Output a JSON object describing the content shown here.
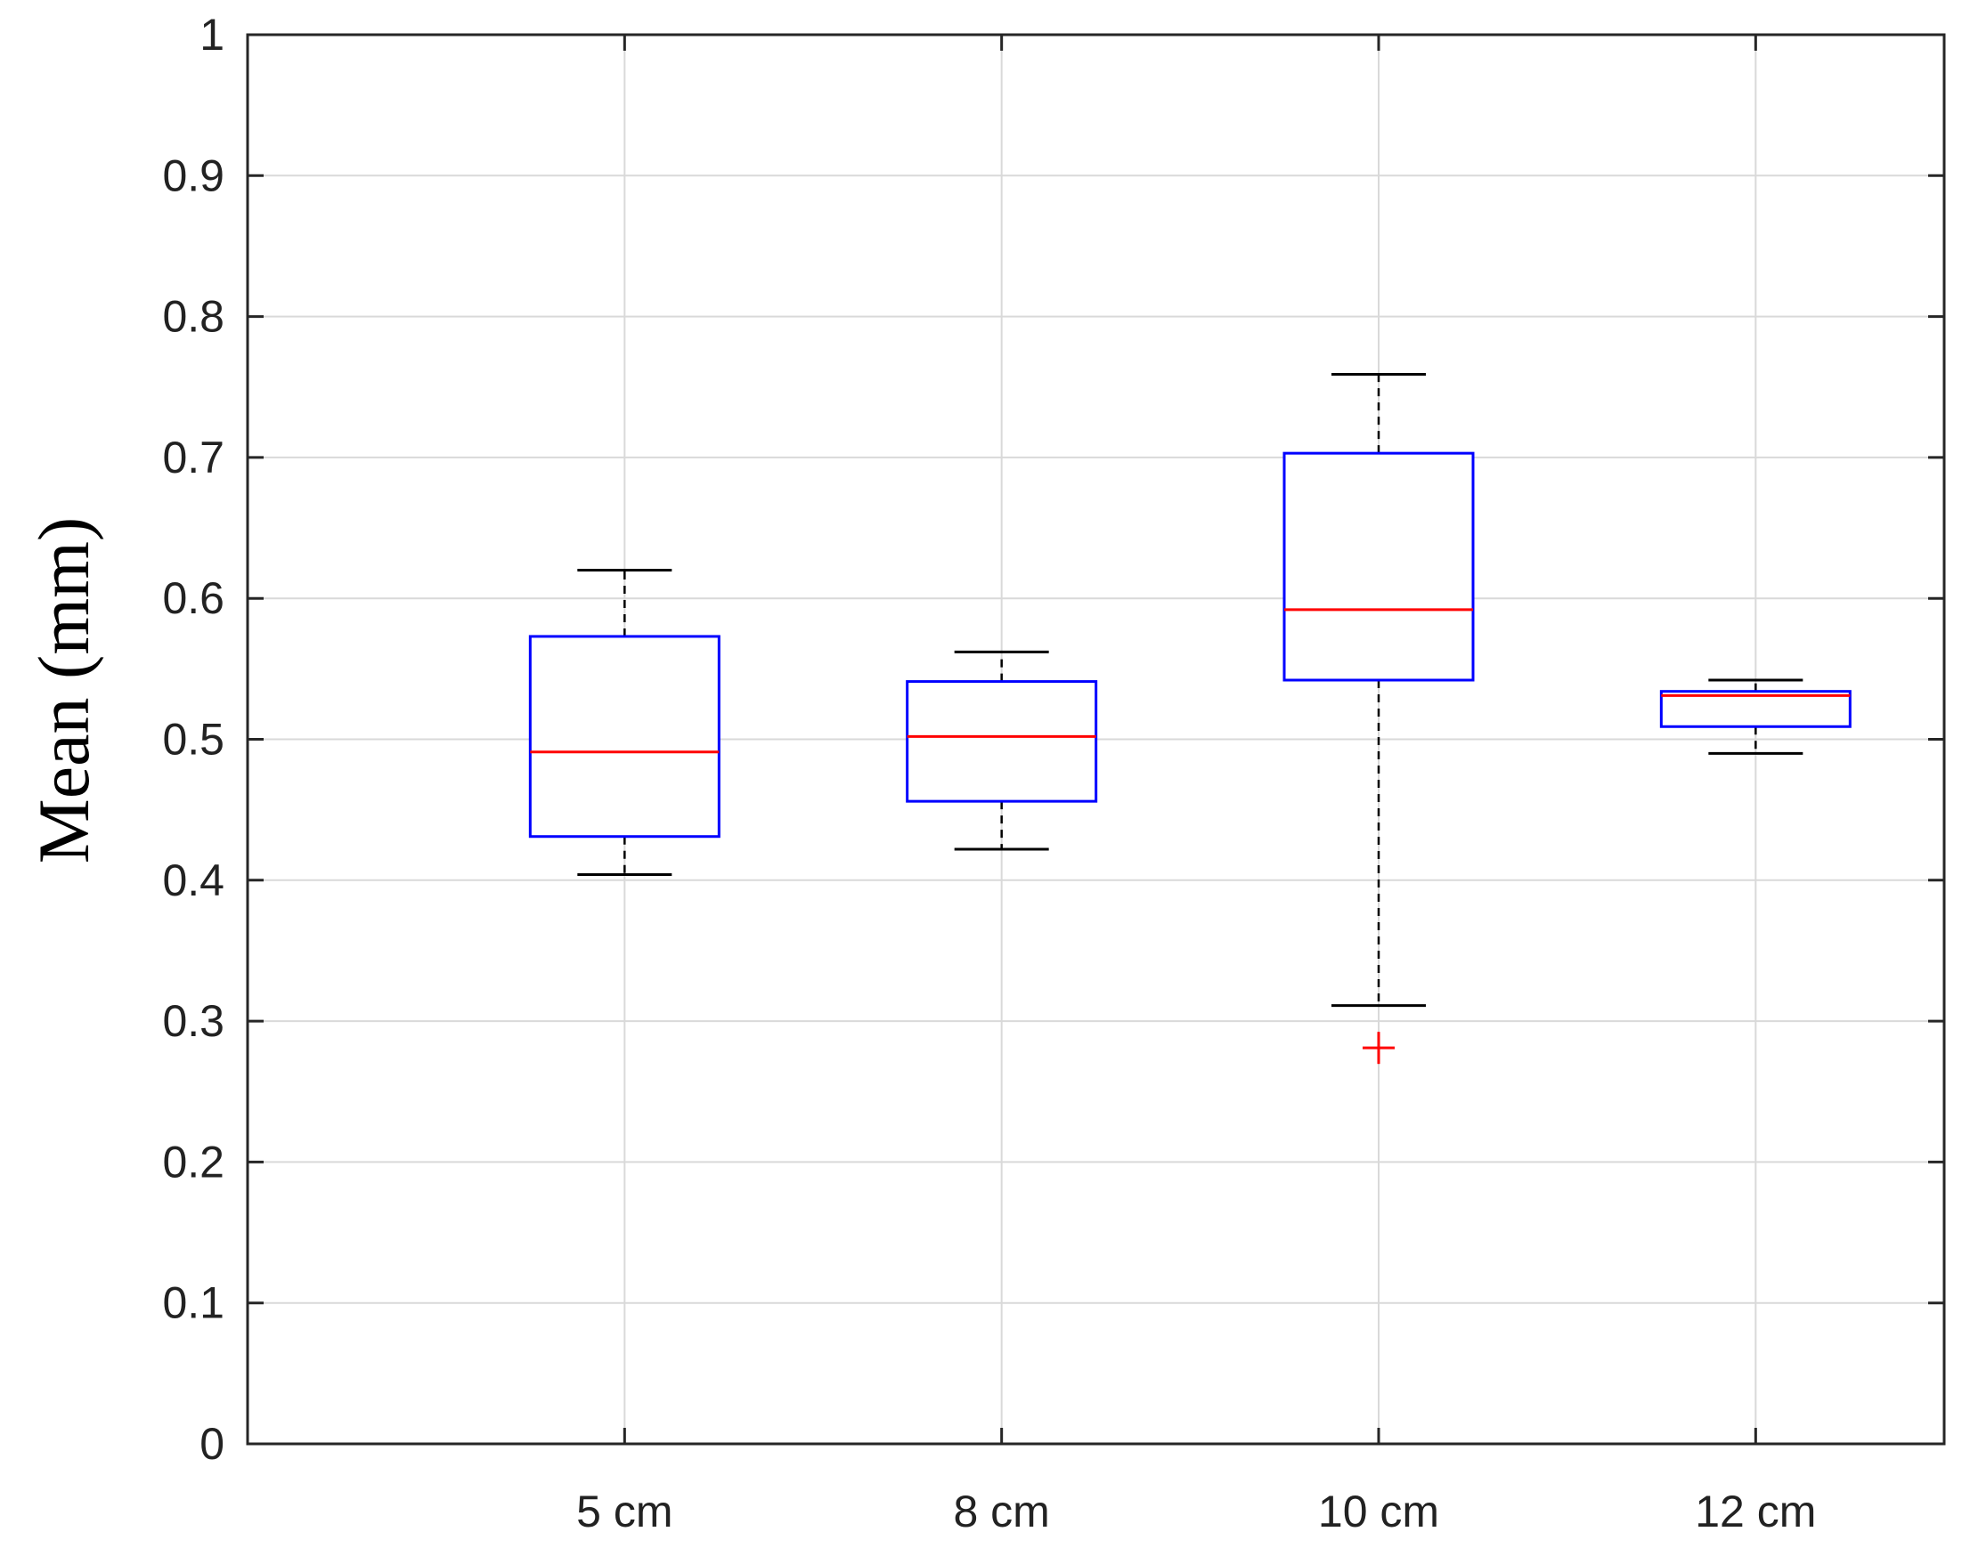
{
  "chart_data": {
    "type": "box",
    "title": "",
    "xlabel": "",
    "ylabel": "Mean (mm)",
    "categories": [
      "5 cm",
      "8 cm",
      "10 cm",
      "12 cm"
    ],
    "ylim": [
      0,
      1
    ],
    "yticks": [
      0,
      0.1,
      0.2,
      0.3,
      0.4,
      0.5,
      0.6,
      0.7,
      0.8,
      0.9,
      1
    ],
    "ytick_labels": [
      "0",
      "0.1",
      "0.2",
      "0.3",
      "0.4",
      "0.5",
      "0.6",
      "0.7",
      "0.8",
      "0.9",
      "1"
    ],
    "grid": true,
    "boxes": [
      {
        "category": "5 cm",
        "whisker_low": 0.404,
        "q1": 0.431,
        "median": 0.491,
        "q3": 0.573,
        "whisker_high": 0.62,
        "outliers": []
      },
      {
        "category": "8 cm",
        "whisker_low": 0.422,
        "q1": 0.456,
        "median": 0.502,
        "q3": 0.541,
        "whisker_high": 0.562,
        "outliers": []
      },
      {
        "category": "10 cm",
        "whisker_low": 0.311,
        "q1": 0.542,
        "median": 0.592,
        "q3": 0.703,
        "whisker_high": 0.759,
        "outliers": [
          0.281
        ]
      },
      {
        "category": "12 cm",
        "whisker_low": 0.49,
        "q1": 0.509,
        "median": 0.531,
        "q3": 0.534,
        "whisker_high": 0.542,
        "outliers": []
      }
    ],
    "colors": {
      "box": "#0000ff",
      "median": "#ff0000",
      "whisker": "#000000",
      "outlier": "#ff0000",
      "grid": "#d9d9d9",
      "axis": "#262626"
    }
  }
}
